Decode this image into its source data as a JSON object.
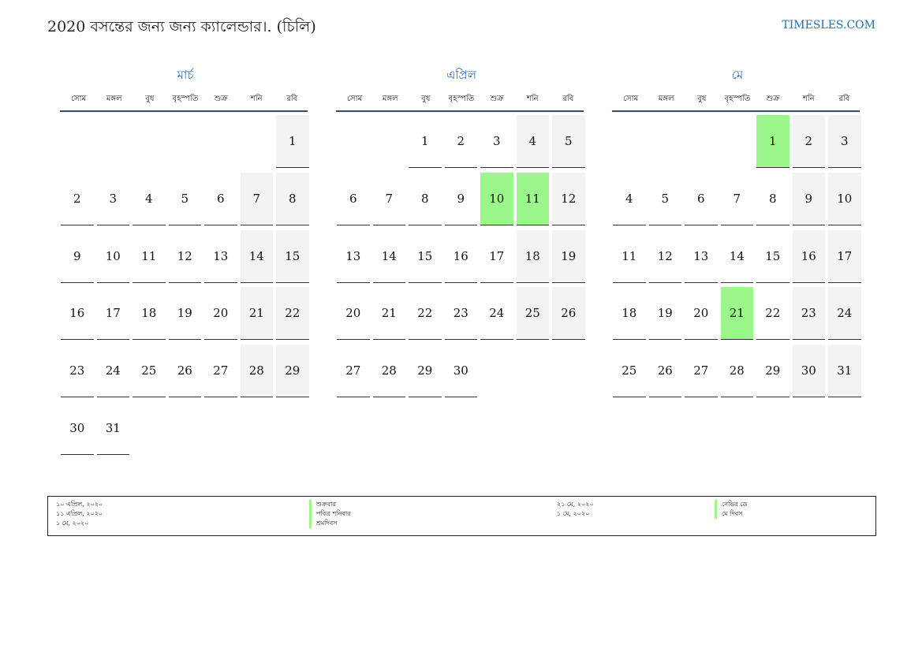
{
  "header": {
    "title": "2020 বসন্তের জন্য জন্য ক্যালেন্ডার।. (চিলি)",
    "site": "TIMESLES.COM"
  },
  "weekdays": [
    "সোম",
    "মঙ্গল",
    "বুধ",
    "বৃহস্পতি",
    "শুক্র",
    "শনি",
    "রবি"
  ],
  "months": [
    {
      "name": "মার্চ",
      "start_offset": 6,
      "days": 31,
      "holidays": []
    },
    {
      "name": "এপ্রিল",
      "start_offset": 2,
      "days": 30,
      "holidays": [
        10,
        11
      ]
    },
    {
      "name": "মে",
      "start_offset": 4,
      "days": 31,
      "holidays": [
        1,
        21
      ]
    }
  ],
  "legend": {
    "col1_dates": [
      "১০ এপ্রিল, ২০২০",
      "১১ এপ্রিল, ২০২০",
      "১ মে, ২০২০"
    ],
    "col1_names": [
      "শুক্রবার",
      "পবিত্র শনিবার",
      "শ্রমদিবস"
    ],
    "col2_dates": [
      "২১ মে, ২০২০",
      "১ মে, ২০২০"
    ],
    "col2_names": [
      "নেভির ডে",
      "মে দিবস"
    ]
  },
  "colors": {
    "holiday": "#9cf78a",
    "weekend": "#f3f3f3",
    "accent": "#2a6ab0"
  }
}
